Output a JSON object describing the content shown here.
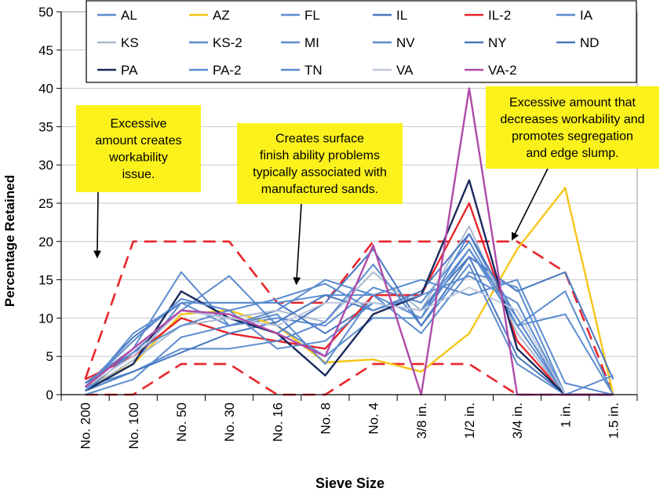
{
  "chart_data": {
    "type": "line",
    "xlabel": "Sieve Size",
    "ylabel": "Percentage Retained",
    "ylim": [
      0,
      50
    ],
    "yticks": [
      0,
      5,
      10,
      15,
      20,
      25,
      30,
      35,
      40,
      45,
      50
    ],
    "categories": [
      "No. 200",
      "No. 100",
      "No. 50",
      "No. 30",
      "No. 16",
      "No. 8",
      "No. 4",
      "3/8 in.",
      "1/2 in.",
      "3/4 in.",
      "1 in.",
      "1.5 in."
    ],
    "legend_position": "top",
    "series": [
      {
        "name": "AL",
        "color": "#5b8ccf",
        "dash": false,
        "values": [
          0.5,
          4,
          12,
          9,
          10,
          9,
          14,
          12,
          20,
          9,
          13.5,
          0
        ]
      },
      {
        "name": "AZ",
        "color": "#f5c518",
        "dash": false,
        "values": [
          1,
          4,
          10.5,
          11,
          9,
          4.2,
          4.6,
          3,
          8,
          19,
          27,
          0
        ]
      },
      {
        "name": "FL",
        "color": "#5b8ccf",
        "dash": false,
        "values": [
          1,
          6,
          16,
          9,
          10.5,
          4,
          13,
          10,
          21,
          9,
          10.5,
          0
        ]
      },
      {
        "name": "IL",
        "color": "#4a78c0",
        "dash": false,
        "values": [
          1,
          7.5,
          12,
          12,
          12,
          8,
          12,
          11,
          18,
          13.5,
          16,
          2
        ]
      },
      {
        "name": "IL-2",
        "color": "#e8252b",
        "dash": false,
        "values": [
          2,
          5,
          10,
          8,
          7,
          6,
          13,
          13,
          25,
          7,
          0,
          0
        ]
      },
      {
        "name": "IA",
        "color": "#5b8ccf",
        "dash": false,
        "values": [
          0,
          2,
          7.5,
          9,
          11,
          15,
          13,
          8,
          16,
          14,
          0,
          0
        ]
      },
      {
        "name": "KS",
        "color": "#a9b9d0",
        "dash": false,
        "values": [
          0.5,
          4.5,
          9,
          10,
          11,
          9.5,
          16,
          11,
          22,
          8,
          0,
          0
        ]
      },
      {
        "name": "KS-2",
        "color": "#5b8ccf",
        "dash": false,
        "values": [
          1.5,
          6,
          11,
          15.5,
          9,
          5,
          10,
          10,
          19,
          9,
          0,
          0
        ]
      },
      {
        "name": "MI",
        "color": "#5b8ccf",
        "dash": false,
        "values": [
          1,
          3,
          6,
          6,
          7,
          9.5,
          17,
          9,
          17,
          4,
          0,
          0
        ]
      },
      {
        "name": "NV",
        "color": "#5b8ccf",
        "dash": false,
        "values": [
          0.5,
          8,
          12,
          12,
          12,
          13,
          13,
          15,
          13,
          15,
          1.5,
          0
        ]
      },
      {
        "name": "NY",
        "color": "#4a78c0",
        "dash": false,
        "values": [
          1.5,
          5.5,
          11,
          10,
          8,
          12,
          19,
          9,
          18,
          5,
          0,
          0
        ]
      },
      {
        "name": "ND",
        "color": "#4a78c0",
        "dash": false,
        "values": [
          0.5,
          3,
          5.5,
          8,
          9.5,
          13,
          11,
          13.5,
          21,
          10,
          0,
          0
        ]
      },
      {
        "name": "PA",
        "color": "#1a2a5e",
        "dash": false,
        "values": [
          0.5,
          4,
          13.5,
          10,
          8,
          2.5,
          10.5,
          13,
          28,
          6,
          0,
          0
        ]
      },
      {
        "name": "PA-2",
        "color": "#5b8ccf",
        "dash": false,
        "values": [
          1,
          7,
          12.5,
          11,
          6,
          7,
          12,
          11,
          19,
          10,
          0,
          0
        ]
      },
      {
        "name": "TN",
        "color": "#5b8ccf",
        "dash": false,
        "values": [
          0.5,
          5.5,
          9,
          11,
          12.5,
          14.5,
          11,
          13,
          15.5,
          12,
          0,
          2.5
        ]
      },
      {
        "name": "VA",
        "color": "#bfc6dd",
        "dash": false,
        "values": [
          1,
          5,
          11,
          10,
          9,
          12,
          12,
          11,
          14,
          11,
          0,
          0
        ]
      },
      {
        "name": "VA-2",
        "color": "#b04aa8",
        "dash": false,
        "values": [
          1,
          6,
          11,
          10.5,
          8,
          5,
          19.5,
          0,
          40,
          0,
          0,
          0
        ]
      }
    ],
    "envelope": {
      "color": "#e8252b",
      "upper": [
        2,
        20,
        20,
        20,
        12,
        12,
        20,
        20,
        20,
        20,
        16,
        0
      ],
      "lower": [
        0,
        0,
        4,
        4,
        0,
        0,
        4,
        4,
        4,
        0,
        0,
        0
      ]
    },
    "annotations": [
      {
        "id": "workability",
        "lines": [
          "Excessive",
          "amount creates",
          "workability",
          "issue."
        ],
        "arrow_to": {
          "cat": 0.25,
          "y": 18
        }
      },
      {
        "id": "surface",
        "lines": [
          "Creates surface",
          "finish ability problems",
          "typically associated with",
          "manufactured sands."
        ],
        "arrow_to": {
          "cat": 4.4,
          "y": 14.5
        }
      },
      {
        "id": "segregation",
        "lines": [
          "Excessive amount that",
          "decreases workability and",
          "promotes segregation",
          "and edge slump."
        ],
        "arrow_to": {
          "cat": 8.9,
          "y": 20.3
        }
      }
    ]
  }
}
